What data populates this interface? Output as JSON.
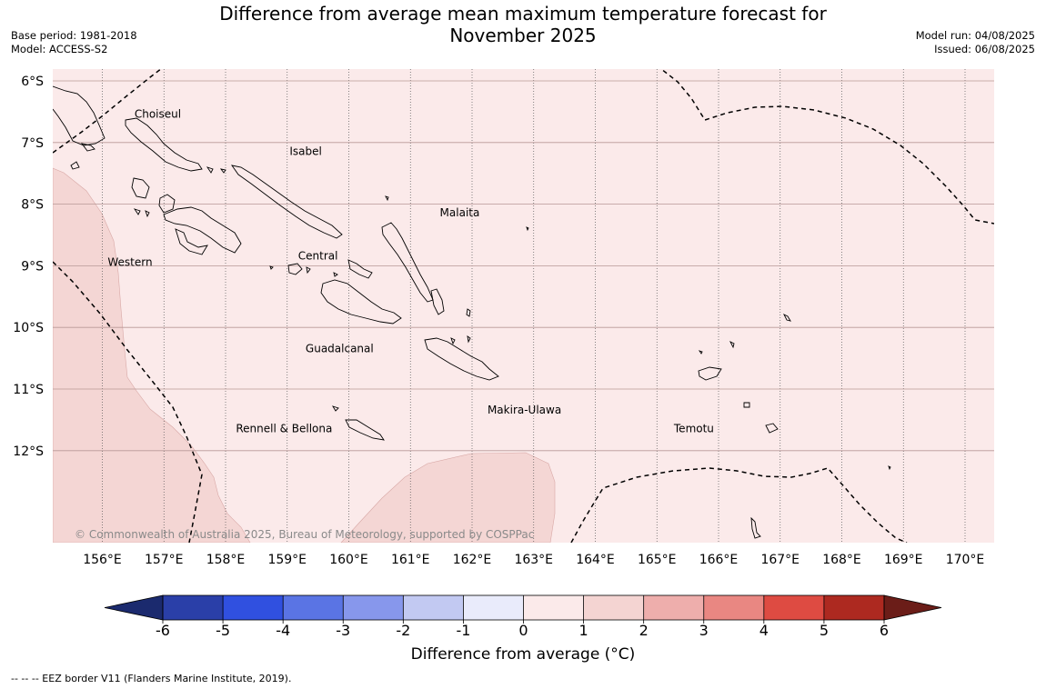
{
  "header": {
    "title_line1": "Difference from average mean maximum temperature forecast for",
    "title_line2": "November 2025",
    "base_period": "Base period: 1981-2018",
    "model": "Model: ACCESS-S2",
    "model_run": "Model run: 04/08/2025",
    "issued": "Issued: 06/08/2025"
  },
  "map": {
    "lon_range": [
      155.2,
      170.5
    ],
    "lat_range": [
      -6.0,
      -13.7
    ],
    "lon_ticks": [
      "156°E",
      "157°E",
      "158°E",
      "159°E",
      "160°E",
      "161°E",
      "162°E",
      "163°E",
      "164°E",
      "165°E",
      "166°E",
      "167°E",
      "168°E",
      "169°E",
      "170°E"
    ],
    "lat_ticks": [
      "6°S",
      "7°S",
      "8°S",
      "9°S",
      "10°S",
      "11°S",
      "12°S"
    ],
    "background_anomaly": "0 to 1",
    "warm_region_anomaly": "1 to 2",
    "provinces": [
      {
        "name": "Choiseul",
        "lon": 156.9,
        "lat": -6.6
      },
      {
        "name": "Isabel",
        "lon": 159.3,
        "lat": -7.2
      },
      {
        "name": "Malaita",
        "lon": 161.8,
        "lat": -8.2
      },
      {
        "name": "Western",
        "lon": 156.45,
        "lat": -9.0
      },
      {
        "name": "Central",
        "lon": 159.5,
        "lat": -8.9
      },
      {
        "name": "Guadalcanal",
        "lon": 159.85,
        "lat": -10.4
      },
      {
        "name": "Makira-Ulawa",
        "lon": 162.85,
        "lat": -11.4
      },
      {
        "name": "Rennell & Bellona",
        "lon": 158.95,
        "lat": -11.7
      },
      {
        "name": "Temotu",
        "lon": 165.6,
        "lat": -11.7
      }
    ],
    "copyright": "© Commonwealth of Australia 2025, Bureau of Meteorology, supported by COSPPac"
  },
  "colorbar": {
    "ticks": [
      "-6",
      "-5",
      "-4",
      "-3",
      "-2",
      "-1",
      "0",
      "1",
      "2",
      "3",
      "4",
      "5",
      "6"
    ],
    "colors": [
      "#2a3fa8",
      "#3050e0",
      "#5a74e4",
      "#8797ec",
      "#c2c9f2",
      "#e9ebfb",
      "#fbeaea",
      "#f4d4d2",
      "#eeaeac",
      "#e98782",
      "#de4b42",
      "#ad2920"
    ],
    "extend_low_color": "#1b2a6e",
    "extend_high_color": "#6b1d18",
    "label": "Difference from average (°C)"
  },
  "footer": {
    "eez_note": "--  --  -- EEZ border V11 (Flanders Marine Institute, 2019)."
  }
}
